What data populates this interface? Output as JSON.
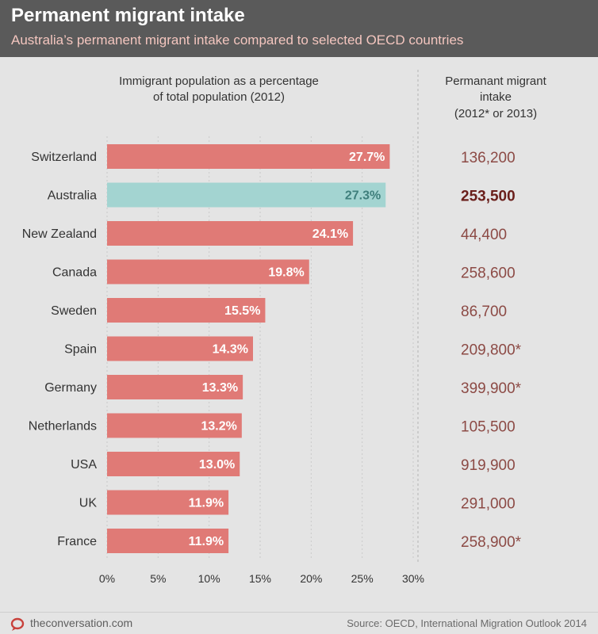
{
  "header": {
    "title": "Permanent migrant intake",
    "subtitle": "Australia’s permanent migrant intake compared to selected OECD countries"
  },
  "chart_data": {
    "type": "bar",
    "orientation": "horizontal",
    "left_heading": [
      "Immigrant population as a percentage",
      "of total population (2012)"
    ],
    "right_heading": [
      "Permanant migrant",
      "intake",
      "(2012* or 2013)"
    ],
    "categories": [
      "Switzerland",
      "Australia",
      "New Zealand",
      "Canada",
      "Sweden",
      "Spain",
      "Germany",
      "Netherlands",
      "USA",
      "UK",
      "France"
    ],
    "values": [
      27.7,
      27.3,
      24.1,
      19.8,
      15.5,
      14.3,
      13.3,
      13.2,
      13.0,
      11.9,
      11.9
    ],
    "value_labels": [
      "27.7%",
      "27.3%",
      "24.1%",
      "19.8%",
      "15.5%",
      "14.3%",
      "13.3%",
      "13.2%",
      "13.0%",
      "11.9%",
      "11.9%"
    ],
    "intake_labels": [
      "136,200",
      "253,500",
      "44,400",
      "258,600",
      "86,700",
      "209,800*",
      "399,900*",
      "105,500",
      "919,900",
      "291,000",
      "258,900*"
    ],
    "highlight_category": "Australia",
    "xlim": [
      0,
      30
    ],
    "xticks": [
      0,
      5,
      10,
      15,
      20,
      25,
      30
    ],
    "xtick_labels": [
      "0%",
      "5%",
      "10%",
      "15%",
      "20%",
      "25%",
      "30%"
    ],
    "colors": {
      "bar": "#e07a76",
      "highlight_bar": "#a3d4d1",
      "value_label": "#ffffff",
      "highlight_value_label": "#3f7f7c",
      "intake": "#8c4a45",
      "highlight_intake": "#6a1f1b"
    }
  },
  "footer": {
    "site": "theconversation.com",
    "source": "Source: OECD, International Migration Outlook 2014",
    "logo_icon": "conversation-logo-icon"
  }
}
